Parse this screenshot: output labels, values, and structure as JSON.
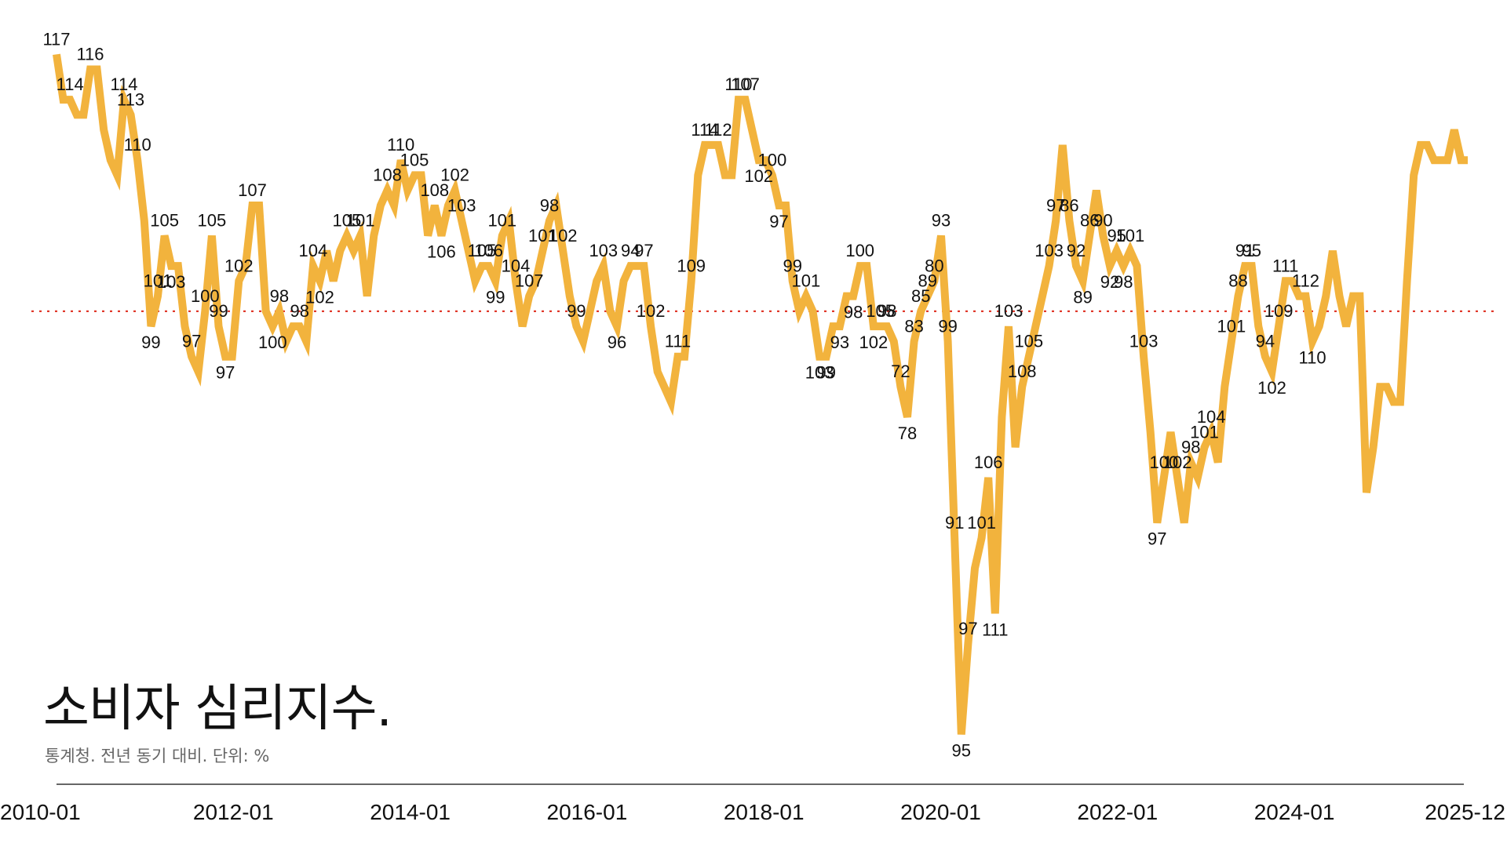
{
  "chart_data": {
    "type": "line",
    "title": "소비자 심리지수.",
    "subtitle": "통계청. 전년 동기 대비. 단위: %",
    "x_start": "2010-01",
    "x_end": "2025-12",
    "x_ticks": [
      "2010-01",
      "2012-01",
      "2014-01",
      "2016-01",
      "2018-01",
      "2020-01",
      "2022-01",
      "2024-01",
      "2025-12"
    ],
    "ylim": [
      70,
      118
    ],
    "reference_line": 100,
    "colors": {
      "line": "#f2b33d",
      "reference": "#e0392b",
      "axis": "#333333"
    },
    "series": [
      {
        "values": [
          117,
          114,
          114,
          113,
          113,
          116,
          116,
          112,
          110,
          109,
          114,
          113,
          110,
          106,
          99,
          101,
          105,
          103,
          103,
          99,
          97,
          96,
          100,
          105,
          99,
          97,
          97,
          102,
          103,
          107,
          107,
          100,
          99,
          100,
          98,
          99,
          99,
          98,
          103,
          102,
          104,
          102,
          104,
          105,
          104,
          105,
          101,
          105,
          107,
          108,
          107,
          110,
          108,
          109,
          109,
          105,
          107,
          105,
          107,
          108,
          106,
          104,
          102,
          103,
          103,
          102,
          105,
          106,
          102,
          99,
          101,
          102,
          104,
          106,
          107,
          104,
          101,
          99,
          98,
          100,
          102,
          103,
          100,
          99,
          102,
          103,
          103,
          103,
          99,
          96,
          95,
          94,
          97,
          97,
          102,
          109,
          111,
          111,
          111,
          109,
          109,
          114,
          114,
          112,
          110,
          110,
          109,
          107,
          107,
          102,
          100,
          101,
          100,
          97,
          97,
          99,
          99,
          101,
          101,
          103,
          103,
          99,
          99,
          99,
          98,
          95,
          93,
          98,
          100,
          101,
          102,
          105,
          98,
          85,
          72,
          78,
          83,
          85,
          89,
          80,
          93,
          99,
          91,
          95,
          97,
          99,
          101,
          103,
          106,
          111,
          106,
          103,
          102,
          105,
          108,
          105,
          103,
          104,
          103,
          104,
          103,
          97,
          92,
          86,
          89,
          92,
          89,
          86,
          90,
          89,
          91,
          92,
          90,
          95,
          98,
          101,
          103,
          103,
          99,
          97,
          96,
          99,
          102,
          102,
          101,
          101,
          98,
          99,
          101,
          104,
          101,
          99,
          101,
          101,
          88,
          91,
          95,
          95,
          94,
          94,
          102,
          109,
          111,
          111,
          110,
          110,
          110,
          112,
          110,
          110
        ]
      }
    ],
    "point_labels": [
      {
        "i": 0,
        "v": "117"
      },
      {
        "i": 2,
        "v": "114"
      },
      {
        "i": 5,
        "v": "116"
      },
      {
        "i": 10,
        "v": "114"
      },
      {
        "i": 11,
        "v": "113"
      },
      {
        "i": 12,
        "v": "110"
      },
      {
        "i": 14,
        "v": "99"
      },
      {
        "i": 15,
        "v": "101"
      },
      {
        "i": 16,
        "v": "105"
      },
      {
        "i": 17,
        "v": "103"
      },
      {
        "i": 20,
        "v": "97"
      },
      {
        "i": 22,
        "v": "100"
      },
      {
        "i": 23,
        "v": "105"
      },
      {
        "i": 24,
        "v": "99"
      },
      {
        "i": 25,
        "v": "97"
      },
      {
        "i": 27,
        "v": "102"
      },
      {
        "i": 29,
        "v": "107"
      },
      {
        "i": 32,
        "v": "100"
      },
      {
        "i": 33,
        "v": "98"
      },
      {
        "i": 36,
        "v": "98"
      },
      {
        "i": 38,
        "v": "104"
      },
      {
        "i": 39,
        "v": "102"
      },
      {
        "i": 43,
        "v": "105"
      },
      {
        "i": 45,
        "v": "101"
      },
      {
        "i": 49,
        "v": "108"
      },
      {
        "i": 51,
        "v": "110"
      },
      {
        "i": 53,
        "v": "105"
      },
      {
        "i": 56,
        "v": "108"
      },
      {
        "i": 57,
        "v": "106"
      },
      {
        "i": 59,
        "v": "102"
      },
      {
        "i": 60,
        "v": "103"
      },
      {
        "i": 63,
        "v": "105"
      },
      {
        "i": 64,
        "v": "106"
      },
      {
        "i": 65,
        "v": "99"
      },
      {
        "i": 66,
        "v": "101"
      },
      {
        "i": 68,
        "v": "104"
      },
      {
        "i": 70,
        "v": "107"
      },
      {
        "i": 72,
        "v": "101"
      },
      {
        "i": 73,
        "v": "98"
      },
      {
        "i": 75,
        "v": "102"
      },
      {
        "i": 77,
        "v": "99"
      },
      {
        "i": 81,
        "v": "103"
      },
      {
        "i": 83,
        "v": "96"
      },
      {
        "i": 85,
        "v": "94"
      },
      {
        "i": 87,
        "v": "97"
      },
      {
        "i": 88,
        "v": "102"
      },
      {
        "i": 92,
        "v": "111"
      },
      {
        "i": 94,
        "v": "109"
      },
      {
        "i": 96,
        "v": "114"
      },
      {
        "i": 98,
        "v": "112"
      },
      {
        "i": 101,
        "v": "110"
      },
      {
        "i": 102,
        "v": "107"
      },
      {
        "i": 104,
        "v": "102"
      },
      {
        "i": 106,
        "v": "100"
      },
      {
        "i": 107,
        "v": "97"
      },
      {
        "i": 109,
        "v": "99"
      },
      {
        "i": 111,
        "v": "101"
      },
      {
        "i": 113,
        "v": "103"
      },
      {
        "i": 114,
        "v": "99"
      },
      {
        "i": 116,
        "v": "93"
      },
      {
        "i": 118,
        "v": "98"
      },
      {
        "i": 119,
        "v": "100"
      },
      {
        "i": 121,
        "v": "102"
      },
      {
        "i": 122,
        "v": "105"
      },
      {
        "i": 123,
        "v": "98"
      },
      {
        "i": 125,
        "v": "72"
      },
      {
        "i": 126,
        "v": "78"
      },
      {
        "i": 127,
        "v": "83"
      },
      {
        "i": 128,
        "v": "85"
      },
      {
        "i": 129,
        "v": "89"
      },
      {
        "i": 130,
        "v": "80"
      },
      {
        "i": 131,
        "v": "93"
      },
      {
        "i": 132,
        "v": "99"
      },
      {
        "i": 133,
        "v": "91"
      },
      {
        "i": 134,
        "v": "95"
      },
      {
        "i": 135,
        "v": "97"
      },
      {
        "i": 137,
        "v": "101"
      },
      {
        "i": 138,
        "v": "106"
      },
      {
        "i": 139,
        "v": "111"
      },
      {
        "i": 141,
        "v": "103"
      },
      {
        "i": 143,
        "v": "108"
      },
      {
        "i": 144,
        "v": "105"
      },
      {
        "i": 147,
        "v": "103"
      },
      {
        "i": 148,
        "v": "97"
      },
      {
        "i": 150,
        "v": "86"
      },
      {
        "i": 151,
        "v": "92"
      },
      {
        "i": 152,
        "v": "89"
      },
      {
        "i": 153,
        "v": "86"
      },
      {
        "i": 155,
        "v": "90"
      },
      {
        "i": 156,
        "v": "92"
      },
      {
        "i": 157,
        "v": "95"
      },
      {
        "i": 158,
        "v": "98"
      },
      {
        "i": 159,
        "v": "101"
      },
      {
        "i": 161,
        "v": "103"
      },
      {
        "i": 163,
        "v": "97"
      },
      {
        "i": 164,
        "v": "100"
      },
      {
        "i": 166,
        "v": "102"
      },
      {
        "i": 168,
        "v": "98"
      },
      {
        "i": 170,
        "v": "101"
      },
      {
        "i": 171,
        "v": "104"
      },
      {
        "i": 174,
        "v": "101"
      },
      {
        "i": 175,
        "v": "88"
      },
      {
        "i": 176,
        "v": "91"
      },
      {
        "i": 177,
        "v": "95"
      },
      {
        "i": 179,
        "v": "94"
      },
      {
        "i": 180,
        "v": "102"
      },
      {
        "i": 181,
        "v": "109"
      },
      {
        "i": 182,
        "v": "111"
      },
      {
        "i": 185,
        "v": "112"
      },
      {
        "i": 186,
        "v": "110"
      }
    ]
  }
}
